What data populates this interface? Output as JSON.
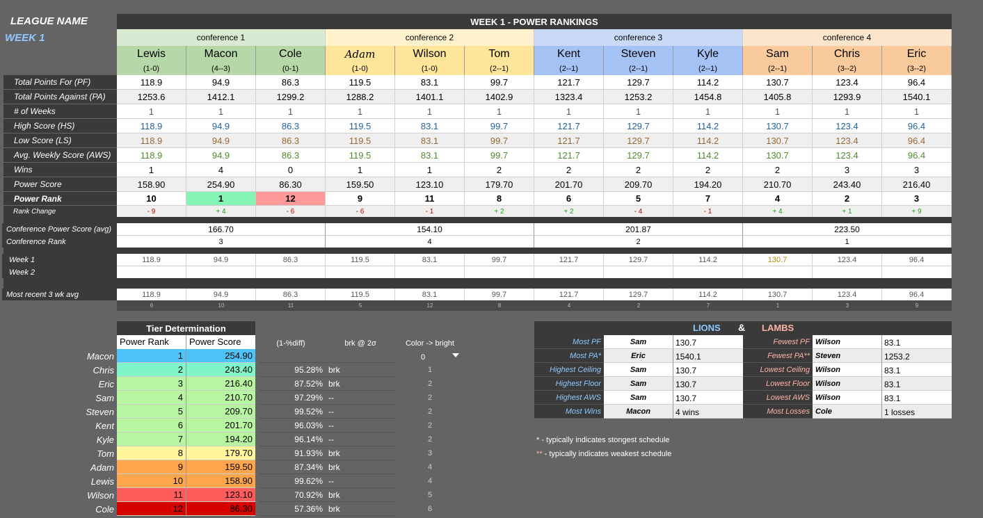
{
  "league": {
    "name": "LEAGUE NAME",
    "week": "WEEK  1"
  },
  "banner": "WEEK 1 - POWER RANKINGS",
  "conferences": [
    {
      "name": "conference 1",
      "color": "#d9ead3",
      "hcolor": "#b6d7a8",
      "power_avg": "166.70",
      "rank": "3"
    },
    {
      "name": "conference 2",
      "color": "#fff2cc",
      "hcolor": "#ffe599",
      "power_avg": "154.10",
      "rank": "4"
    },
    {
      "name": "conference 3",
      "color": "#c9daf8",
      "hcolor": "#a4c2f4",
      "power_avg": "201.87",
      "rank": "2"
    },
    {
      "name": "conference 4",
      "color": "#fce5cd",
      "hcolor": "#f9cb9c",
      "power_avg": "223.50",
      "rank": "1"
    }
  ],
  "row_labels": {
    "pf": "Total Points For (PF)",
    "pa": "Total Points Against (PA)",
    "weeks": "# of Weeks",
    "hs": "High Score (HS)",
    "ls": "Low Score (LS)",
    "aws": "Avg. Weekly Score (AWS)",
    "wins": "Wins",
    "power_score": "Power Score",
    "power_rank": "Power Rank",
    "rank_change": "Rank Change",
    "conf_power": "Conference Power Score (avg)",
    "conf_rank": "Conference Rank",
    "week1": "Week 1",
    "week2": "Week 2",
    "recent": "Most recent 3 wk avg"
  },
  "teams": [
    {
      "name": "Lewis",
      "record": "(1-0)",
      "pf": "118.9",
      "pa": "1253.6",
      "weeks": "1",
      "hs": "118.9",
      "ls": "118.9",
      "aws": "118.9",
      "wins": "1",
      "power_score": "158.90",
      "power_rank": "10",
      "rank_change": "- 9",
      "week1": "118.9",
      "week2": "",
      "recent": "118.9",
      "sub": "6"
    },
    {
      "name": "Macon",
      "record": "(4--3)",
      "pf": "94.9",
      "pa": "1412.1",
      "weeks": "1",
      "hs": "94.9",
      "ls": "94.9",
      "aws": "94.9",
      "wins": "4",
      "power_score": "254.90",
      "power_rank": "1",
      "rank_change": "+ 4",
      "week1": "94.9",
      "week2": "",
      "recent": "94.9",
      "sub": "10"
    },
    {
      "name": "Cole",
      "record": "(0-1)",
      "pf": "86.3",
      "pa": "1299.2",
      "weeks": "1",
      "hs": "86.3",
      "ls": "86.3",
      "aws": "86.3",
      "wins": "0",
      "power_score": "86.30",
      "power_rank": "12",
      "rank_change": "- 6",
      "week1": "86.3",
      "week2": "",
      "recent": "86.3",
      "sub": "11"
    },
    {
      "name": "Adam",
      "record": "(1-0)",
      "pf": "119.5",
      "pa": "1288.2",
      "weeks": "1",
      "hs": "119.5",
      "ls": "119.5",
      "aws": "119.5",
      "wins": "1",
      "power_score": "159.50",
      "power_rank": "9",
      "rank_change": "- 6",
      "week1": "119.5",
      "week2": "",
      "recent": "119.5",
      "sub": "5"
    },
    {
      "name": "Wilson",
      "record": "(1-0)",
      "pf": "83.1",
      "pa": "1401.1",
      "weeks": "1",
      "hs": "83.1",
      "ls": "83.1",
      "aws": "83.1",
      "wins": "1",
      "power_score": "123.10",
      "power_rank": "11",
      "rank_change": "- 1",
      "week1": "83.1",
      "week2": "",
      "recent": "83.1",
      "sub": "12"
    },
    {
      "name": "Tom",
      "record": "(2--1)",
      "pf": "99.7",
      "pa": "1402.9",
      "weeks": "1",
      "hs": "99.7",
      "ls": "99.7",
      "aws": "99.7",
      "wins": "2",
      "power_score": "179.70",
      "power_rank": "8",
      "rank_change": "+ 2",
      "week1": "99.7",
      "week2": "",
      "recent": "99.7",
      "sub": "8"
    },
    {
      "name": "Kent",
      "record": "(2--1)",
      "pf": "121.7",
      "pa": "1323.4",
      "weeks": "1",
      "hs": "121.7",
      "ls": "121.7",
      "aws": "121.7",
      "wins": "2",
      "power_score": "201.70",
      "power_rank": "6",
      "rank_change": "+ 2",
      "week1": "121.7",
      "week2": "",
      "recent": "121.7",
      "sub": "4"
    },
    {
      "name": "Steven",
      "record": "(2--1)",
      "pf": "129.7",
      "pa": "1253.2",
      "weeks": "1",
      "hs": "129.7",
      "ls": "129.7",
      "aws": "129.7",
      "wins": "2",
      "power_score": "209.70",
      "power_rank": "5",
      "rank_change": "- 4",
      "week1": "129.7",
      "week2": "",
      "recent": "129.7",
      "sub": "2"
    },
    {
      "name": "Kyle",
      "record": "(2--1)",
      "pf": "114.2",
      "pa": "1454.8",
      "weeks": "1",
      "hs": "114.2",
      "ls": "114.2",
      "aws": "114.2",
      "wins": "2",
      "power_score": "194.20",
      "power_rank": "7",
      "rank_change": "- 1",
      "week1": "114.2",
      "week2": "",
      "recent": "114.2",
      "sub": "7"
    },
    {
      "name": "Sam",
      "record": "(2--1)",
      "pf": "130.7",
      "pa": "1405.8",
      "weeks": "1",
      "hs": "130.7",
      "ls": "130.7",
      "aws": "130.7",
      "wins": "2",
      "power_score": "210.70",
      "power_rank": "4",
      "rank_change": "+ 4",
      "week1": "130.7",
      "week2": "",
      "recent": "130.7",
      "sub": "1"
    },
    {
      "name": "Chris",
      "record": "(3--2)",
      "pf": "123.4",
      "pa": "1293.9",
      "weeks": "1",
      "hs": "123.4",
      "ls": "123.4",
      "aws": "123.4",
      "wins": "3",
      "power_score": "243.40",
      "power_rank": "2",
      "rank_change": "+ 1",
      "week1": "123.4",
      "week2": "",
      "recent": "123.4",
      "sub": "3"
    },
    {
      "name": "Eric",
      "record": "(3--2)",
      "pf": "96.4",
      "pa": "1540.1",
      "weeks": "1",
      "hs": "96.4",
      "ls": "96.4",
      "aws": "96.4",
      "wins": "3",
      "power_score": "216.40",
      "power_rank": "3",
      "rank_change": "+ 9",
      "week1": "96.4",
      "week2": "",
      "recent": "96.4",
      "sub": "9"
    }
  ],
  "tier": {
    "title": "Tier Determination",
    "col_rank": "Power Rank",
    "col_score": "Power Score",
    "col_diff": "(1-%diff)",
    "col_brk": "brk @ 2σ",
    "col_color": "Color -> bright",
    "dropdown_value": "0",
    "rows": [
      {
        "name": "Macon",
        "rank": "1",
        "score": "254.90",
        "diff": "",
        "brk": "",
        "color": "",
        "bg": "#4fc3f7"
      },
      {
        "name": "Chris",
        "rank": "2",
        "score": "243.40",
        "diff": "95.28%",
        "brk": "brk",
        "color": "1",
        "bg": "#7ff5c9"
      },
      {
        "name": "Eric",
        "rank": "3",
        "score": "216.40",
        "diff": "87.52%",
        "brk": "brk",
        "color": "2",
        "bg": "#b7f5a0"
      },
      {
        "name": "Sam",
        "rank": "4",
        "score": "210.70",
        "diff": "97.29%",
        "brk": "--",
        "color": "2",
        "bg": "#b7f5a0"
      },
      {
        "name": "Steven",
        "rank": "5",
        "score": "209.70",
        "diff": "99.52%",
        "brk": "--",
        "color": "2",
        "bg": "#b7f5a0"
      },
      {
        "name": "Kent",
        "rank": "6",
        "score": "201.70",
        "diff": "96.03%",
        "brk": "--",
        "color": "2",
        "bg": "#b7f5a0"
      },
      {
        "name": "Kyle",
        "rank": "7",
        "score": "194.20",
        "diff": "96.14%",
        "brk": "--",
        "color": "2",
        "bg": "#b7f5a0"
      },
      {
        "name": "Tom",
        "rank": "8",
        "score": "179.70",
        "diff": "91.93%",
        "brk": "brk",
        "color": "3",
        "bg": "#fff59d"
      },
      {
        "name": "Adam",
        "rank": "9",
        "score": "159.50",
        "diff": "87.34%",
        "brk": "brk",
        "color": "4",
        "bg": "#ffa64d"
      },
      {
        "name": "Lewis",
        "rank": "10",
        "score": "158.90",
        "diff": "99.62%",
        "brk": "--",
        "color": "4",
        "bg": "#ffa64d"
      },
      {
        "name": "Wilson",
        "rank": "11",
        "score": "123.10",
        "diff": "70.92%",
        "brk": "brk",
        "color": "5",
        "bg": "#ff5c5c"
      },
      {
        "name": "Cole",
        "rank": "12",
        "score": "86.30",
        "diff": "57.36%",
        "brk": "brk",
        "color": "6",
        "bg": "#d60000"
      }
    ]
  },
  "lions_lambs": {
    "lions_title": "LIONS",
    "amp": "&",
    "lambs_title": "LAMBS",
    "rows": [
      {
        "lion_label": "Most PF",
        "lion_name": "Sam",
        "lion_value": "130.7",
        "lamb_label": "Fewest PF",
        "lamb_name": "Wilson",
        "lamb_value": "83.1"
      },
      {
        "lion_label": "Most PA*",
        "lion_name": "Eric",
        "lion_value": "1540.1",
        "lamb_label": "Fewest PA**",
        "lamb_name": "Steven",
        "lamb_value": "1253.2"
      },
      {
        "lion_label": "Highest Ceiling",
        "lion_name": "Sam",
        "lion_value": "130.7",
        "lamb_label": "Lowest Ceiling",
        "lamb_name": "Wilson",
        "lamb_value": "83.1"
      },
      {
        "lion_label": "Highest Floor",
        "lion_name": "Sam",
        "lion_value": "130.7",
        "lamb_label": "Lowest Floor",
        "lamb_name": "Wilson",
        "lamb_value": "83.1"
      },
      {
        "lion_label": "Highest AWS",
        "lion_name": "Sam",
        "lion_value": "130.7",
        "lamb_label": "Lowest AWS",
        "lamb_name": "Wilson",
        "lamb_value": "83.1"
      },
      {
        "lion_label": "Most Wins",
        "lion_name": "Macon",
        "lion_value": "4  wins",
        "lamb_label": "Most Losses",
        "lamb_name": "Cole",
        "lamb_value": "1  losses"
      }
    ],
    "note1": "* - typically indicates stongest schedule",
    "note2": "** - typically indicates weakest schedule",
    "note2_star": "**",
    "note2_text": " - typically indicates weakest schedule"
  },
  "colors": {
    "rank_best": "#85f5b5",
    "rank_worst": "#ff9999",
    "lion_text": "#8ec9ff",
    "lamb_text": "#ffb3a8",
    "recent_highlight": "#b8860b"
  }
}
